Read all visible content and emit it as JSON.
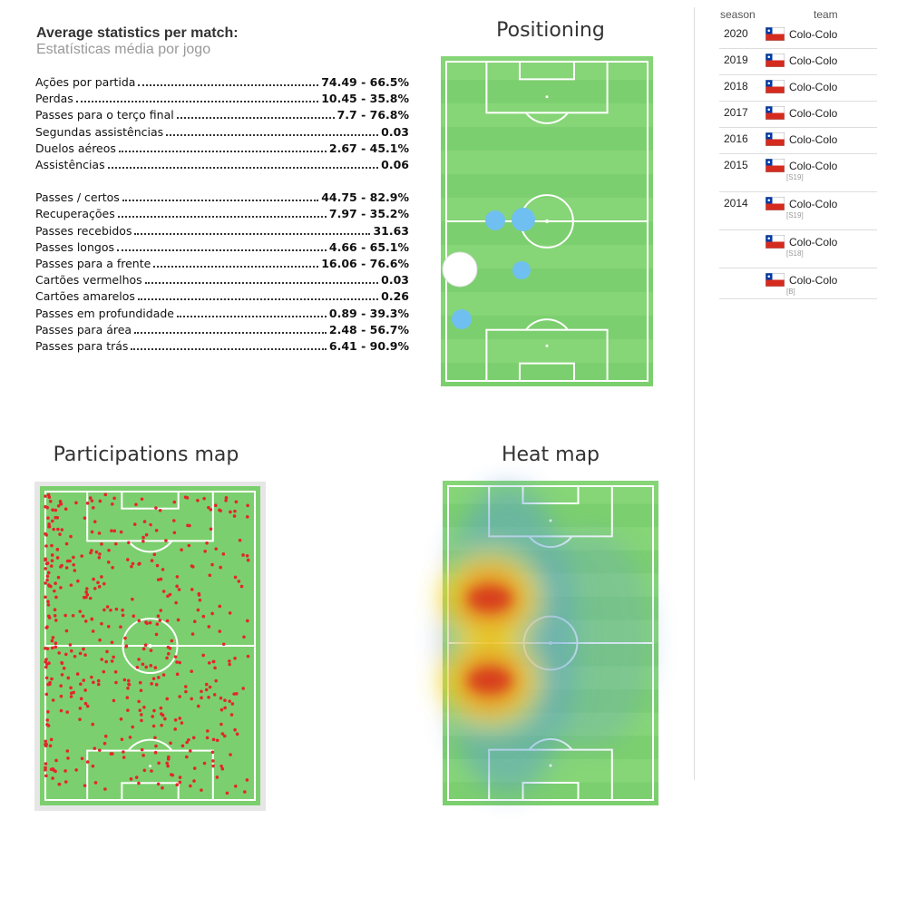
{
  "stats": {
    "title": "Average statistics per match:",
    "subtitle": "Estatísticas média por jogo",
    "groups": [
      [
        {
          "label": "Ações por partida",
          "value": "74.49 - 66.5%"
        },
        {
          "label": "Perdas",
          "value": "10.45 - 35.8%"
        },
        {
          "label": "Passes para o terço final",
          "value": "7.7 - 76.8%"
        },
        {
          "label": "Segundas assistências",
          "value": "0.03"
        },
        {
          "label": "Duelos aéreos",
          "value": "2.67 - 45.1%"
        },
        {
          "label": "Assistências",
          "value": "0.06"
        }
      ],
      [
        {
          "label": "Passes / certos",
          "value": "44.75 - 82.9%"
        },
        {
          "label": "Recuperações",
          "value": "7.97 - 35.2%"
        },
        {
          "label": "Passes recebidos",
          "value": "31.63"
        },
        {
          "label": "Passes longos",
          "value": "4.66 - 65.1%"
        },
        {
          "label": "Passes para a frente",
          "value": "16.06 - 76.6%"
        },
        {
          "label": "Cartões vermelhos",
          "value": "0.03"
        },
        {
          "label": "Cartões amarelos",
          "value": "0.26"
        },
        {
          "label": "Passes em profundidade",
          "value": "0.89 - 39.3%"
        },
        {
          "label": "Passes para área",
          "value": "2.48 - 56.7%"
        },
        {
          "label": "Passes para trás",
          "value": "6.41 - 90.9%"
        }
      ]
    ]
  },
  "maps": {
    "positioning": "Positioning",
    "participations": "Participations map",
    "heat": "Heat map"
  },
  "career": {
    "header": {
      "season": "season",
      "team": "team"
    },
    "rows": [
      {
        "season": "2020",
        "team": "Colo-Colo"
      },
      {
        "season": "2019",
        "team": "Colo-Colo"
      },
      {
        "season": "2018",
        "team": "Colo-Colo"
      },
      {
        "season": "2017",
        "team": "Colo-Colo"
      },
      {
        "season": "2016",
        "team": "Colo-Colo"
      },
      {
        "season": "2015",
        "team": "Colo-Colo",
        "tag": "[S19]"
      },
      {
        "season": "2014",
        "team": "Colo-Colo",
        "tag": "[S19]"
      },
      {
        "team": "Colo-Colo",
        "tag": "[S18]"
      },
      {
        "team": "Colo-Colo",
        "tag": "[B]"
      }
    ]
  }
}
